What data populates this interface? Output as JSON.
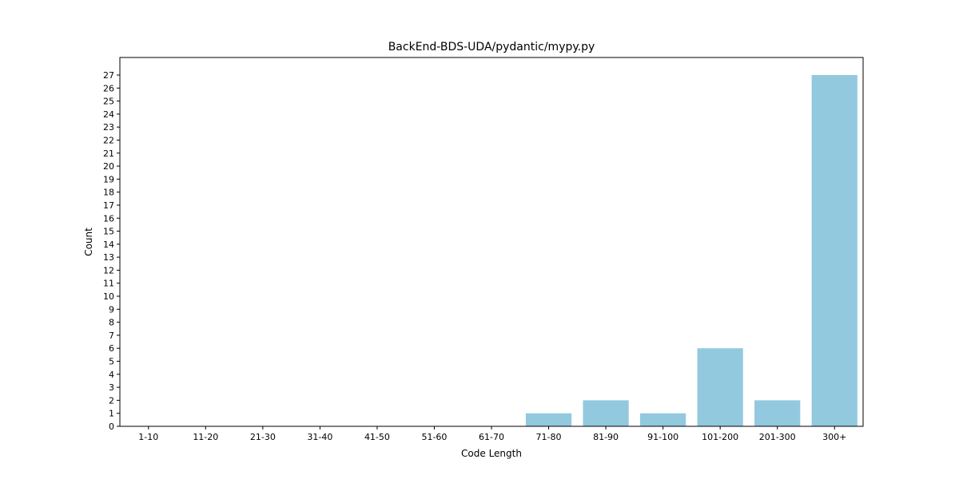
{
  "chart_data": {
    "type": "bar",
    "title": "BackEnd-BDS-UDA/pydantic/mypy.py",
    "xlabel": "Code Length",
    "ylabel": "Count",
    "categories": [
      "1-10",
      "11-20",
      "21-30",
      "31-40",
      "41-50",
      "51-60",
      "61-70",
      "71-80",
      "81-90",
      "91-100",
      "101-200",
      "201-300",
      "300+"
    ],
    "values": [
      0,
      0,
      0,
      0,
      0,
      0,
      0,
      1,
      2,
      1,
      6,
      2,
      27
    ],
    "ylim": [
      0,
      28.35
    ],
    "yticks": [
      0,
      1,
      2,
      3,
      4,
      5,
      6,
      7,
      8,
      9,
      10,
      11,
      12,
      13,
      14,
      15,
      16,
      17,
      18,
      19,
      20,
      21,
      22,
      23,
      24,
      25,
      26,
      27
    ],
    "bar_color": "#92c9de",
    "grid": false,
    "legend": "none"
  }
}
